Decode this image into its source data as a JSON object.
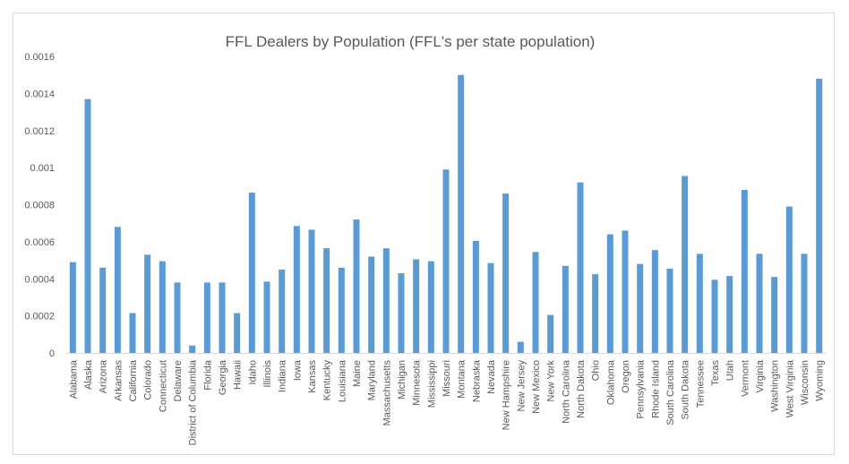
{
  "chart_data": {
    "type": "bar",
    "title": "FFL Dealers by Population (FFL's per state population)",
    "xlabel": "",
    "ylabel": "",
    "ylim": [
      0,
      0.0016
    ],
    "yticks": [
      "0",
      "0.0002",
      "0.0004",
      "0.0006",
      "0.0008",
      "0.001",
      "0.0012",
      "0.0014",
      "0.0016"
    ],
    "grid": false,
    "legend": "none",
    "bar_color": "#5b9bd5",
    "categories": [
      "Alabama",
      "Alaska",
      "Arizona",
      "Arkansas",
      "California",
      "Colorado",
      "Connecticut",
      "Delaware",
      "District of Columbia",
      "Florida",
      "Georgia",
      "Hawaii",
      "Idaho",
      "Illinois",
      "Indiana",
      "Iowa",
      "Kansas",
      "Kentucky",
      "Louisiana",
      "Maine",
      "Maryland",
      "Massachusetts",
      "Michigan",
      "Minnesota",
      "Mississippi",
      "Missouri",
      "Montana",
      "Nebraska",
      "Nevada",
      "New Hampshire",
      "New Jersey",
      "New Mexico",
      "New York",
      "North Carolina",
      "North Dakota",
      "Ohio",
      "Oklahoma",
      "Oregon",
      "Pennsylvania",
      "Rhode Island",
      "South Carolina",
      "South Dakota",
      "Tennessee",
      "Texas",
      "Utah",
      "Vermont",
      "Virginia",
      "Washington",
      "West Virginia",
      "Wisconsin",
      "Wyoming"
    ],
    "values": [
      0.00049,
      0.00137,
      0.00046,
      0.00068,
      0.000215,
      0.00053,
      0.000495,
      0.00038,
      4e-05,
      0.00038,
      0.00038,
      0.000215,
      0.000865,
      0.000385,
      0.00045,
      0.000685,
      0.000665,
      0.000565,
      0.00046,
      0.00072,
      0.00052,
      0.000565,
      0.00043,
      0.000505,
      0.000495,
      0.00099,
      0.0015,
      0.000605,
      0.000485,
      0.00086,
      6e-05,
      0.000545,
      0.000205,
      0.00047,
      0.00092,
      0.000425,
      0.00064,
      0.00066,
      0.00048,
      0.000555,
      0.000455,
      0.000955,
      0.000535,
      0.000395,
      0.000415,
      0.00088,
      0.000535,
      0.00041,
      0.00079,
      0.000535,
      0.00148
    ]
  }
}
